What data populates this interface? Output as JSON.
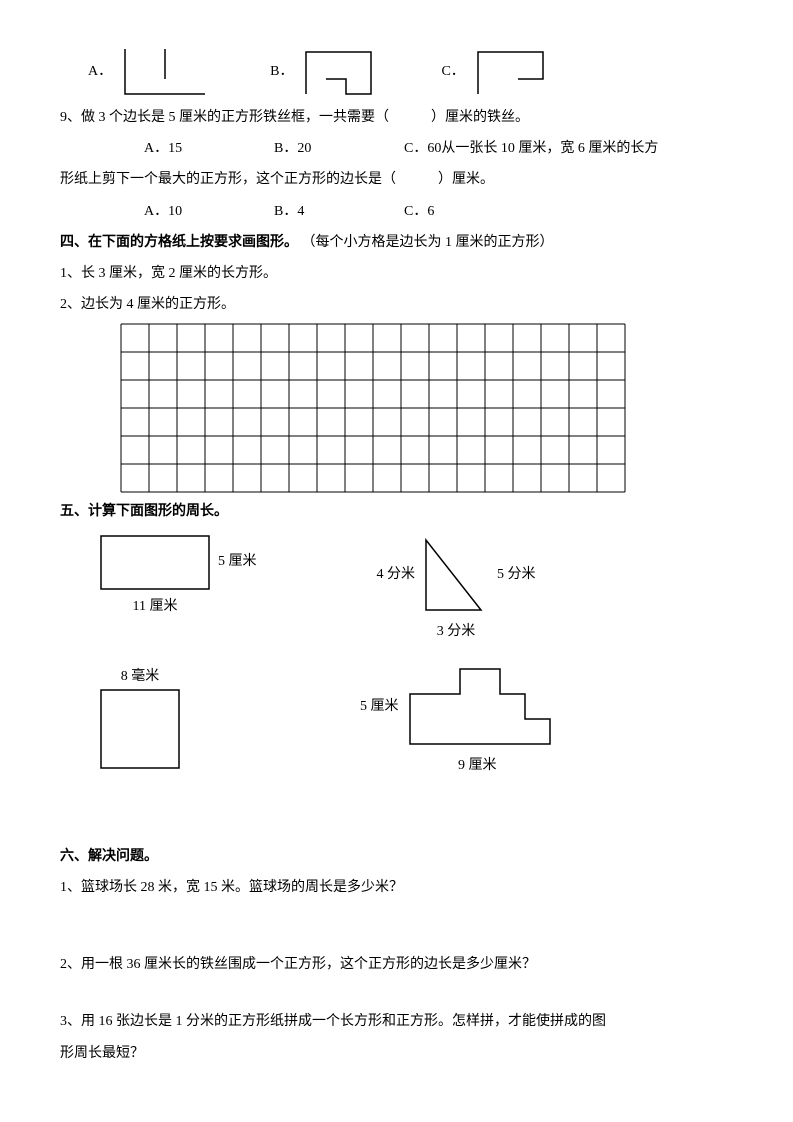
{
  "q8": {
    "optA": "A．",
    "optB": "B．",
    "optC": "C．"
  },
  "q9": {
    "text": "9、做 3 个边长是 5 厘米的正方形铁丝框，一共需要（　　　）厘米的铁丝。",
    "optA": "A．15",
    "optB": "B．20",
    "optC_prefix": "C．60",
    "tail": " 从一张长 10 厘米，宽 6 厘米的长方",
    "line2": "形纸上剪下一个最大的正方形，这个正方形的边长是（　　　）厘米。",
    "ans_optA": "A．10",
    "ans_optB": "B．4",
    "ans_optC": "C．6"
  },
  "s4": {
    "title": "四、在下面的方格纸上按要求画图形。",
    "note": "（每个小方格是边长为 1 厘米的正方形）",
    "q1": "1、长 3 厘米，宽 2 厘米的长方形。",
    "q2": "2、边长为 4 厘米的正方形。",
    "grid": {
      "cols": 18,
      "rows": 6,
      "cell": 28
    }
  },
  "s5": {
    "title": "五、计算下面图形的周长。",
    "rect1": {
      "w": 110,
      "h": 55,
      "side": "5 厘米",
      "bottom": "11 厘米"
    },
    "tri": {
      "left": "4 分米",
      "right": "5 分米",
      "bottom": "3 分米"
    },
    "sq": {
      "top": "8 毫米",
      "size": 80
    },
    "stair": {
      "left": "5 厘米",
      "bottom": "9 厘米"
    }
  },
  "s6": {
    "title": "六、解决问题。",
    "q1": "1、篮球场长 28 米，宽 15 米。篮球场的周长是多少米？",
    "q2": "2、用一根 36 厘米长的铁丝围成一个正方形，这个正方形的边长是多少厘米？",
    "q3a": "3、用 16 张边长是 1 分米的正方形纸拼成一个长方形和正方形。怎样拼，才能使拼成的图",
    "q3b": "形周长最短？"
  }
}
